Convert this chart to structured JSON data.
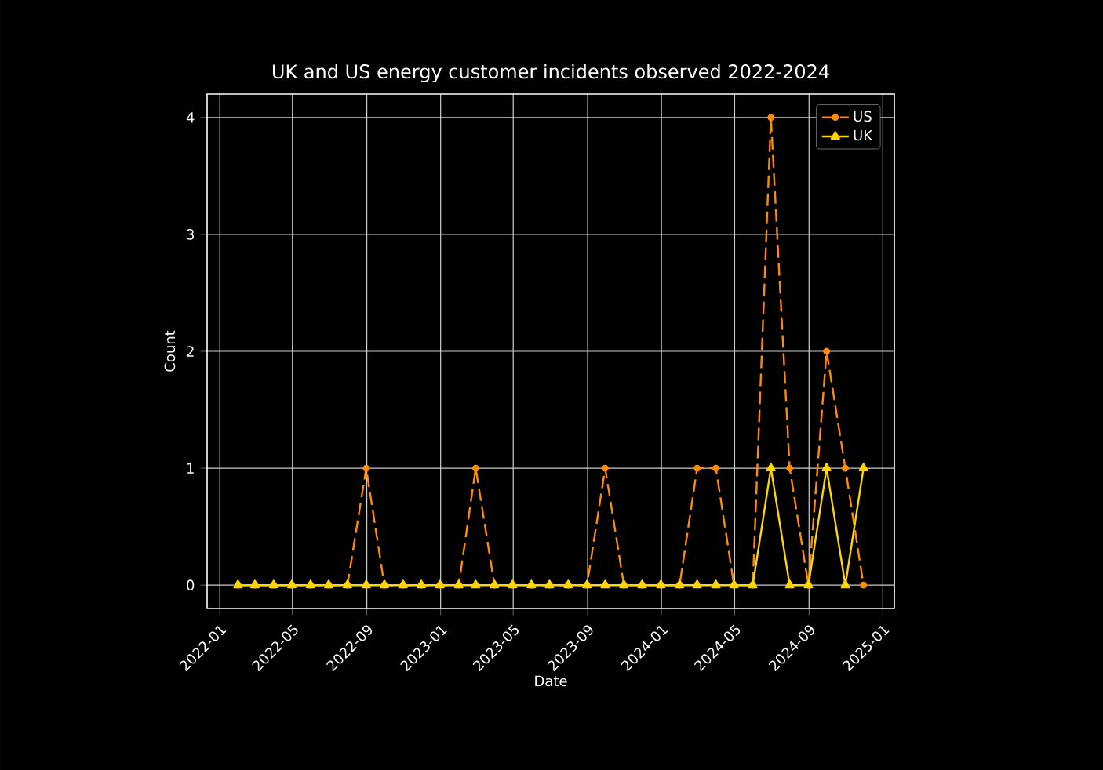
{
  "chart_data": {
    "type": "line",
    "title": "UK and US energy customer incidents observed 2022-2024",
    "xlabel": "Date",
    "ylabel": "Count",
    "x": [
      "2022-01-31",
      "2022-02-28",
      "2022-03-31",
      "2022-04-30",
      "2022-05-31",
      "2022-06-30",
      "2022-07-31",
      "2022-08-31",
      "2022-09-30",
      "2022-10-31",
      "2022-11-30",
      "2022-12-31",
      "2023-01-31",
      "2023-02-28",
      "2023-03-31",
      "2023-04-30",
      "2023-05-31",
      "2023-06-30",
      "2023-07-31",
      "2023-08-31",
      "2023-09-30",
      "2023-10-31",
      "2023-11-30",
      "2023-12-31",
      "2024-01-31",
      "2024-02-29",
      "2024-03-31",
      "2024-04-30",
      "2024-05-31",
      "2024-06-30",
      "2024-07-31",
      "2024-08-31",
      "2024-09-30",
      "2024-10-31",
      "2024-11-30"
    ],
    "series": [
      {
        "name": "US",
        "color": "#ff8c00",
        "marker": "circle",
        "line_style": "dashed",
        "values": [
          0,
          0,
          0,
          0,
          0,
          0,
          0,
          1,
          0,
          0,
          0,
          0,
          0,
          1,
          0,
          0,
          0,
          0,
          0,
          0,
          1,
          0,
          0,
          0,
          0,
          1,
          1,
          0,
          0,
          4,
          1,
          0,
          2,
          1,
          0
        ]
      },
      {
        "name": "UK",
        "color": "#ffd700",
        "marker": "triangle",
        "line_style": "solid",
        "values": [
          0,
          0,
          0,
          0,
          0,
          0,
          0,
          0,
          0,
          0,
          0,
          0,
          0,
          0,
          0,
          0,
          0,
          0,
          0,
          0,
          0,
          0,
          0,
          0,
          0,
          0,
          0,
          0,
          0,
          1,
          0,
          0,
          1,
          0,
          1
        ]
      }
    ],
    "xlim": [
      "2021-12-11",
      "2025-01-20"
    ],
    "xticks": [
      "2022-01",
      "2022-05",
      "2022-09",
      "2023-01",
      "2023-05",
      "2023-09",
      "2024-01",
      "2024-05",
      "2024-09",
      "2025-01"
    ],
    "ylim": [
      -0.2,
      4.2
    ],
    "yticks": [
      0,
      1,
      2,
      3,
      4
    ],
    "grid": true,
    "legend": "top right"
  }
}
